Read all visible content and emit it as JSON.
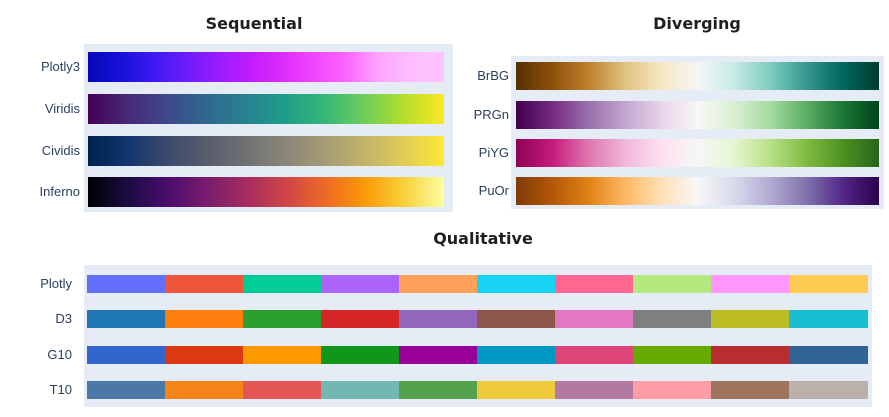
{
  "chart_data": [
    {
      "type": "heatmap",
      "title": "Sequential",
      "rows": [
        {
          "label": "Plotly3",
          "colors": [
            "#0508b8",
            "#1910d8",
            "#3c19f0",
            "#6b1cfb",
            "#981cfd",
            "#bf1cfd",
            "#dd2bfd",
            "#f246fe",
            "#fc67fd",
            "#fea5fd",
            "#febefe",
            "#fec3fe"
          ]
        },
        {
          "label": "Viridis",
          "colors": [
            "#440154",
            "#482878",
            "#3e4989",
            "#31688e",
            "#26828e",
            "#1f9e89",
            "#35b779",
            "#6ece58",
            "#b5de2b",
            "#fde725"
          ]
        },
        {
          "label": "Cividis",
          "colors": [
            "#00224e",
            "#123570",
            "#3b496c",
            "#575d6d",
            "#707173",
            "#8a8678",
            "#a59c74",
            "#c3b369",
            "#e1cc55",
            "#fee838"
          ]
        },
        {
          "label": "Inferno",
          "colors": [
            "#000004",
            "#1b0c41",
            "#4a0c6b",
            "#781c6d",
            "#a52c60",
            "#cf4446",
            "#ed6925",
            "#fb9b06",
            "#f7d13d",
            "#fcffa4"
          ]
        }
      ]
    },
    {
      "type": "heatmap",
      "title": "Diverging",
      "rows": [
        {
          "label": "BrBG",
          "colors": [
            "#543005",
            "#8c510a",
            "#bf812d",
            "#dfc27d",
            "#f6e8c3",
            "#f5f5f5",
            "#c7eae5",
            "#80cdc1",
            "#35978f",
            "#01665e",
            "#003c30"
          ]
        },
        {
          "label": "PRGn",
          "colors": [
            "#40004b",
            "#762a83",
            "#9970ab",
            "#c2a5cf",
            "#e7d4e8",
            "#f7f7f7",
            "#d9f0d3",
            "#a6dba0",
            "#5aae61",
            "#1b7837",
            "#00441b"
          ]
        },
        {
          "label": "PiYG",
          "colors": [
            "#8e0152",
            "#c51b7d",
            "#de77ae",
            "#f1b6da",
            "#fde0ef",
            "#f7f7f7",
            "#e6f5d0",
            "#b8e186",
            "#7fbc41",
            "#4d9221",
            "#276419"
          ]
        },
        {
          "label": "PuOr",
          "colors": [
            "#7f3b08",
            "#b35806",
            "#e08214",
            "#fdb863",
            "#fee0b6",
            "#f7f7f7",
            "#d8daeb",
            "#b2abd2",
            "#8073ac",
            "#542788",
            "#2d004b"
          ]
        }
      ]
    },
    {
      "type": "heatmap",
      "title": "Qualitative",
      "rows": [
        {
          "label": "Plotly",
          "colors": [
            "#636efa",
            "#ef553b",
            "#00cc96",
            "#ab63fa",
            "#ffa15a",
            "#19d3f3",
            "#ff6692",
            "#b6e880",
            "#ff97ff",
            "#fecb52"
          ]
        },
        {
          "label": "D3",
          "colors": [
            "#1f77b4",
            "#ff7f0e",
            "#2ca02c",
            "#d62728",
            "#9467bd",
            "#8c564b",
            "#e377c2",
            "#7f7f7f",
            "#bcbd22",
            "#17becf"
          ]
        },
        {
          "label": "G10",
          "colors": [
            "#3366cc",
            "#dc3912",
            "#ff9900",
            "#109618",
            "#990099",
            "#0099c6",
            "#dd4477",
            "#66aa00",
            "#b82e2e",
            "#316395"
          ]
        },
        {
          "label": "T10",
          "colors": [
            "#4c78a8",
            "#f58518",
            "#e45756",
            "#72b7b2",
            "#54a24b",
            "#eeca3b",
            "#b279a2",
            "#ff9da6",
            "#9d755d",
            "#bab0ac"
          ]
        }
      ]
    }
  ]
}
